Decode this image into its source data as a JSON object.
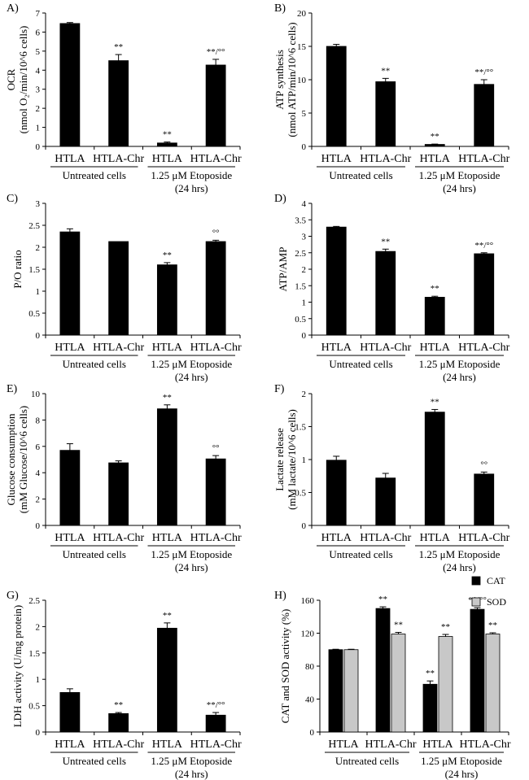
{
  "colors": {
    "bar": "#000000",
    "sod": "#c8c8c8",
    "axis": "#000000"
  },
  "chart_data": [
    {
      "type": "bar",
      "panel": "A)",
      "ylabel_lines": [
        "OCR",
        "(nmol O₂/min/10^6 cells)"
      ],
      "ylim": [
        0,
        7
      ],
      "yticks": [
        0,
        1,
        2,
        3,
        4,
        5,
        6,
        7
      ],
      "categories": [
        "HTLA",
        "HTLA-Chr",
        "HTLA",
        "HTLA-Chr"
      ],
      "values": [
        6.45,
        4.5,
        0.18,
        4.27
      ],
      "errors": [
        0.05,
        0.32,
        0.05,
        0.3
      ],
      "annotations": [
        "",
        "**",
        "**",
        "**/°°"
      ],
      "groups": [
        "Untreated cells",
        "1.25 μM Etoposide"
      ],
      "group_sub": "(24 hrs)"
    },
    {
      "type": "bar",
      "panel": "B)",
      "ylabel_lines": [
        "ATP synthesis",
        "(nmol ATP/min/10^6 cells)"
      ],
      "ylim": [
        0,
        20
      ],
      "yticks": [
        0,
        5,
        10,
        15,
        20
      ],
      "categories": [
        "HTLA",
        "HTLA-Chr",
        "HTLA",
        "HTLA-Chr"
      ],
      "values": [
        15.0,
        9.7,
        0.3,
        9.3
      ],
      "errors": [
        0.3,
        0.5,
        0.05,
        0.7
      ],
      "annotations": [
        "",
        "**",
        "**",
        "**/°°"
      ],
      "groups": [
        "Untreated cells",
        "1.25 μM Etoposide"
      ],
      "group_sub": "(24 hrs)"
    },
    {
      "type": "bar",
      "panel": "C)",
      "ylabel_lines": [
        "P/O ratio"
      ],
      "ylim": [
        0,
        3
      ],
      "yticks": [
        0,
        0.5,
        1,
        1.5,
        2,
        2.5,
        3
      ],
      "categories": [
        "HTLA",
        "HTLA-Chr",
        "HTLA",
        "HTLA-Chr"
      ],
      "values": [
        2.35,
        2.13,
        1.6,
        2.13
      ],
      "errors": [
        0.07,
        0.0,
        0.05,
        0.03
      ],
      "annotations": [
        "",
        "",
        "**",
        "°°"
      ],
      "groups": [
        "Untreated cells",
        "1.25 μM Etoposide"
      ],
      "group_sub": "(24 hrs)"
    },
    {
      "type": "bar",
      "panel": "D)",
      "ylabel_lines": [
        "ATP/AMP"
      ],
      "ylim": [
        0,
        4
      ],
      "yticks": [
        0,
        0.5,
        1,
        1.5,
        2,
        2.5,
        3,
        3.5,
        4
      ],
      "categories": [
        "HTLA",
        "HTLA-Chr",
        "HTLA",
        "HTLA-Chr"
      ],
      "values": [
        3.28,
        2.54,
        1.15,
        2.47
      ],
      "errors": [
        0.02,
        0.07,
        0.03,
        0.03
      ],
      "annotations": [
        "",
        "**",
        "**",
        "**/°°"
      ],
      "groups": [
        "Untreated cells",
        "1.25 μM Etoposide"
      ],
      "group_sub": "(24 hrs)"
    },
    {
      "type": "bar",
      "panel": "E)",
      "ylabel_lines": [
        "Glucose consumption",
        "(mM Glucose/10^6 cells)"
      ],
      "ylim": [
        0,
        10
      ],
      "yticks": [
        0,
        2,
        4,
        6,
        8,
        10
      ],
      "categories": [
        "HTLA",
        "HTLA-Chr",
        "HTLA",
        "HTLA-Chr"
      ],
      "values": [
        5.7,
        4.75,
        8.85,
        5.05
      ],
      "errors": [
        0.5,
        0.15,
        0.3,
        0.25
      ],
      "annotations": [
        "",
        "",
        "**",
        "°°"
      ],
      "groups": [
        "Untreated cells",
        "1.25 μM Etoposide"
      ],
      "group_sub": "(24 hrs)"
    },
    {
      "type": "bar",
      "panel": "F)",
      "ylabel_lines": [
        "Lactate release",
        "(mM lactate/10^6 cells)"
      ],
      "ylim": [
        0,
        2
      ],
      "yticks": [
        0,
        0.5,
        1,
        1.5,
        2
      ],
      "categories": [
        "HTLA",
        "HTLA-Chr",
        "HTLA",
        "HTLA-Chr"
      ],
      "values": [
        0.99,
        0.72,
        1.72,
        0.78
      ],
      "errors": [
        0.06,
        0.07,
        0.04,
        0.03
      ],
      "annotations": [
        "",
        "",
        "**",
        "°°"
      ],
      "groups": [
        "Untreated cells",
        "1.25 μM Etoposide"
      ],
      "group_sub": "(24 hrs)"
    },
    {
      "type": "bar",
      "panel": "G)",
      "ylabel_lines": [
        "LDH activity (U/mg protein)"
      ],
      "ylim": [
        0,
        2.5
      ],
      "yticks": [
        0,
        0.5,
        1,
        1.5,
        2,
        2.5
      ],
      "categories": [
        "HTLA",
        "HTLA-Chr",
        "HTLA",
        "HTLA-Chr"
      ],
      "values": [
        0.75,
        0.35,
        1.97,
        0.32
      ],
      "errors": [
        0.07,
        0.02,
        0.1,
        0.05
      ],
      "annotations": [
        "",
        "**",
        "**",
        "**/°°"
      ],
      "groups": [
        "Untreated cells",
        "1.25 μM Etoposide"
      ],
      "group_sub": "(24 hrs)"
    },
    {
      "type": "grouped-bar",
      "panel": "H)",
      "ylabel_lines": [
        "CAT and SOD activity (%)"
      ],
      "ylim": [
        0,
        160
      ],
      "yticks": [
        0,
        40,
        80,
        120,
        160
      ],
      "categories": [
        "HTLA",
        "HTLA-Chr",
        "HTLA",
        "HTLA-Chr"
      ],
      "series": [
        {
          "name": "CAT",
          "color": "#000000",
          "values": [
            100,
            150,
            58,
            149
          ],
          "errors": [
            0.5,
            2,
            4,
            2
          ],
          "annotations": [
            "",
            "**",
            "**",
            "**/°°"
          ]
        },
        {
          "name": "SOD",
          "color": "#c8c8c8",
          "values": [
            100,
            119,
            116,
            119
          ],
          "errors": [
            0.5,
            2,
            2.5,
            1.5
          ],
          "annotations": [
            "",
            "**",
            "**",
            "**"
          ]
        }
      ],
      "legend": "top-right",
      "groups": [
        "Untreated cells",
        "1.25 μM Etoposide"
      ],
      "group_sub": "(24 hrs)"
    }
  ]
}
